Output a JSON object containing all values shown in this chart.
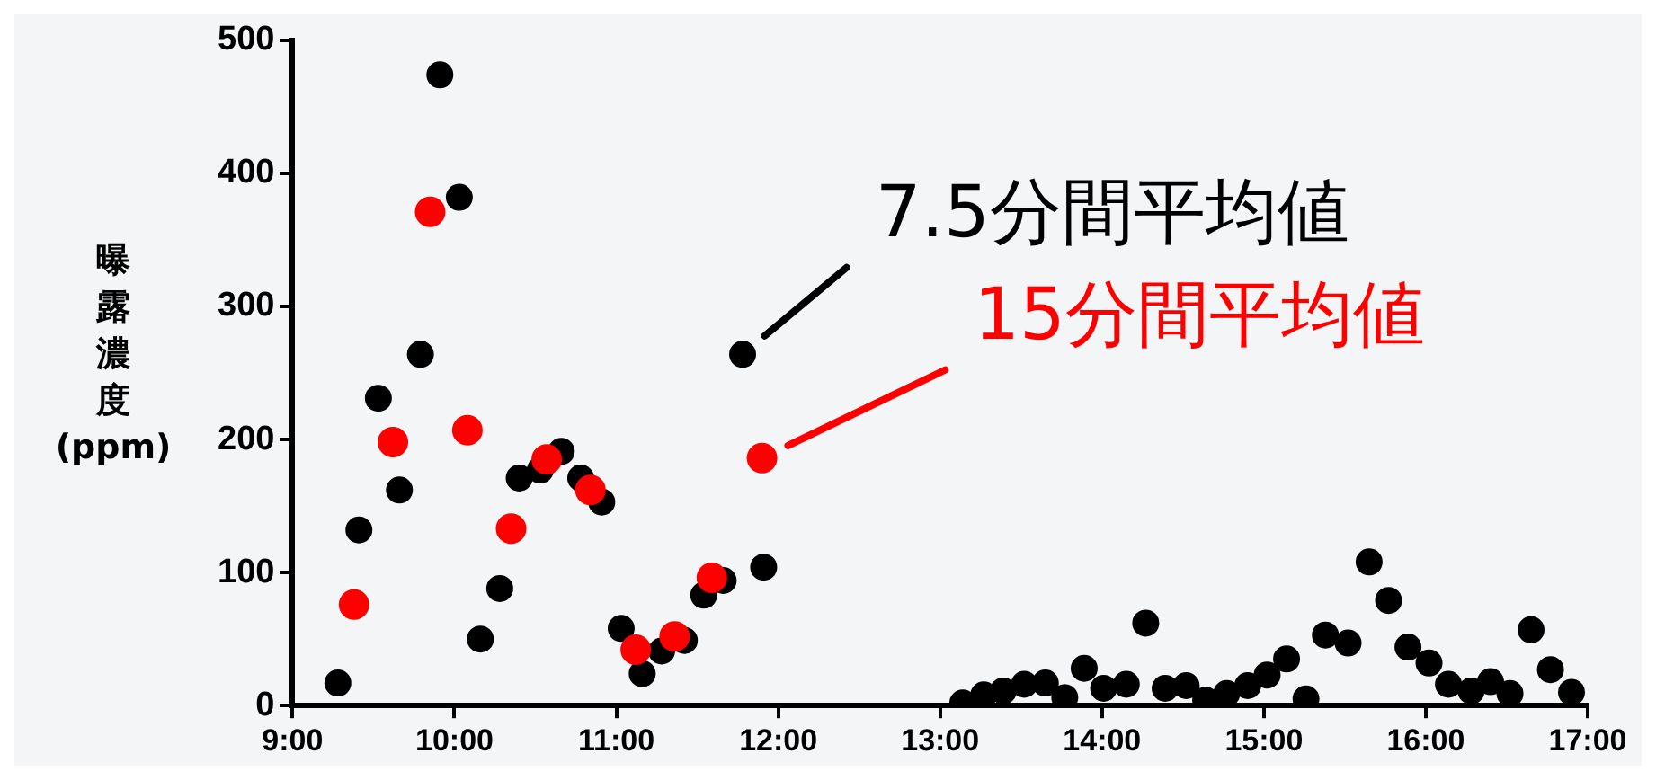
{
  "chart_data": {
    "type": "scatter",
    "ylabel": "曝露濃度 (ppm)",
    "xlim": [
      9,
      17
    ],
    "xticks": [
      {
        "value": 9,
        "label": "9:00"
      },
      {
        "value": 10,
        "label": "10:00"
      },
      {
        "value": 11,
        "label": "11:00"
      },
      {
        "value": 12,
        "label": "12:00"
      },
      {
        "value": 13,
        "label": "13:00"
      },
      {
        "value": 14,
        "label": "14:00"
      },
      {
        "value": 15,
        "label": "15:00"
      },
      {
        "value": 16,
        "label": "16:00"
      },
      {
        "value": 17,
        "label": "17:00"
      }
    ],
    "ylim": [
      0,
      500
    ],
    "yticks": [
      0,
      100,
      200,
      300,
      400,
      500
    ],
    "grid": false,
    "legend": false,
    "marker": "circle",
    "series": [
      {
        "name": "7.5分間平均値",
        "color": "#000000",
        "x": [
          9.28,
          9.41,
          9.53,
          9.66,
          9.79,
          9.91,
          10.03,
          10.16,
          10.28,
          10.4,
          10.53,
          10.66,
          10.78,
          10.91,
          11.03,
          11.16,
          11.28,
          11.42,
          11.54,
          11.66,
          11.78,
          11.91,
          13.14,
          13.27,
          13.39,
          13.52,
          13.65,
          13.77,
          13.89,
          14.01,
          14.15,
          14.27,
          14.39,
          14.52,
          14.64,
          14.77,
          14.9,
          15.02,
          15.14,
          15.26,
          15.38,
          15.52,
          15.65,
          15.77,
          15.89,
          16.02,
          16.14,
          16.28,
          16.4,
          16.52,
          16.65,
          16.77,
          16.9
        ],
        "values": [
          17,
          132,
          231,
          162,
          264,
          474,
          382,
          50,
          88,
          171,
          177,
          191,
          171,
          153,
          58,
          24,
          41,
          49,
          83,
          94,
          264,
          104,
          2,
          8,
          11,
          16,
          17,
          6,
          28,
          13,
          16,
          62,
          13,
          15,
          4,
          9,
          15,
          23,
          35,
          5,
          53,
          47,
          108,
          79,
          44,
          32,
          16,
          11,
          18,
          9,
          57,
          27,
          10
        ]
      },
      {
        "name": "15分間平均値",
        "color": "#ff0000",
        "x": [
          9.38,
          9.62,
          9.85,
          10.08,
          10.35,
          10.57,
          10.84,
          11.12,
          11.36,
          11.59,
          11.9
        ],
        "values": [
          76,
          198,
          371,
          207,
          133,
          185,
          162,
          42,
          52,
          96,
          186
        ]
      }
    ]
  }
}
